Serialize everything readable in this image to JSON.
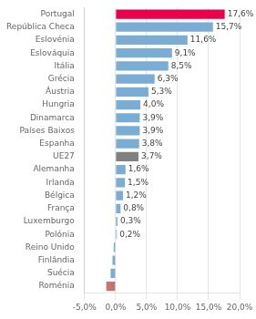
{
  "chart_data": {
    "type": "bar",
    "orientation": "horizontal",
    "categories": [
      "Portugal",
      "República Checa",
      "Eslovénia",
      "Eslováquia",
      "Itália",
      "Grécia",
      "Áustria",
      "Hungria",
      "Dinamarca",
      "Países Baixos",
      "Espanha",
      "UE27",
      "Alemanha",
      "Irlanda",
      "Bélgica",
      "França",
      "Luxemburgo",
      "Polónia",
      "Reino Unido",
      "Finlândia",
      "Suécia",
      "Roménia"
    ],
    "values": [
      17.6,
      15.7,
      11.6,
      9.1,
      8.5,
      6.3,
      5.3,
      4.0,
      3.9,
      3.9,
      3.8,
      3.7,
      1.6,
      1.5,
      1.2,
      0.8,
      0.3,
      0.2,
      -0.3,
      -0.5,
      -0.8,
      -1.5
    ],
    "value_labels": [
      "17,6%",
      "15,7%",
      "11,6%",
      "9,1%",
      "8,5%",
      "6,3%",
      "5,3%",
      "4,0%",
      "3,9%",
      "3,9%",
      "3,8%",
      "3,7%",
      "1,6%",
      "1,5%",
      "1,2%",
      "0,8%",
      "0,3%",
      "0,2%",
      null,
      null,
      null,
      null
    ],
    "data_labels": true,
    "colors": [
      "#e8004d",
      "#7badd4",
      "#7badd4",
      "#7badd4",
      "#7badd4",
      "#7badd4",
      "#7badd4",
      "#7badd4",
      "#7badd4",
      "#7badd4",
      "#7badd4",
      "#808080",
      "#7badd4",
      "#7badd4",
      "#7badd4",
      "#7badd4",
      "#7badd4",
      "#7badd4",
      "#7badd4",
      "#7badd4",
      "#7badd4",
      "#c47474"
    ],
    "xlim": [
      -5.0,
      20.0
    ],
    "xticks": [
      {
        "value": -5.0,
        "label": "-5,0%"
      },
      {
        "value": 0.0,
        "label": "0,0%"
      },
      {
        "value": 5.0,
        "label": "5,0%"
      },
      {
        "value": 10.0,
        "label": "10,0%"
      },
      {
        "value": 15.0,
        "label": "15,0%"
      },
      {
        "value": 20.0,
        "label": "20,0%"
      }
    ],
    "grid": true
  }
}
